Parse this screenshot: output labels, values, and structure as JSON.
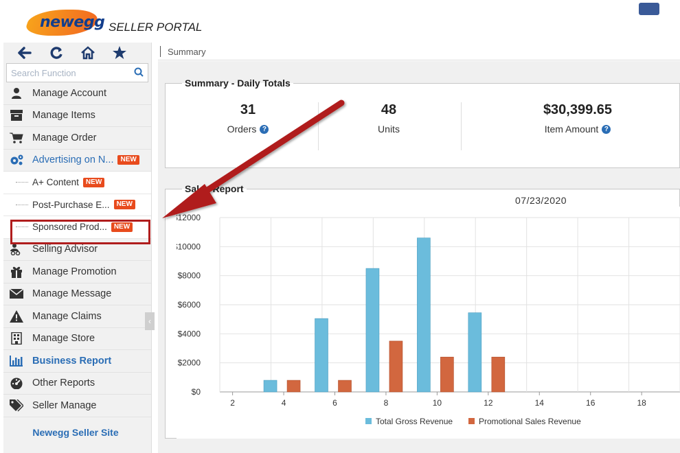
{
  "header": {
    "logo_text": "newegg",
    "portal_text": "SELLER PORTAL"
  },
  "search": {
    "placeholder": "Search Function"
  },
  "sidebar": {
    "items": [
      {
        "label": "Manage Account",
        "icon": "user-icon"
      },
      {
        "label": "Manage Items",
        "icon": "archive-icon"
      },
      {
        "label": "Manage Order",
        "icon": "cart-icon"
      },
      {
        "label": "Advertising on N...",
        "icon": "gears-icon",
        "badge": "NEW"
      }
    ],
    "sub_items": [
      {
        "label": "A+ Content",
        "badge": "NEW"
      },
      {
        "label": "Post-Purchase E...",
        "badge": "NEW"
      },
      {
        "label": "Sponsored Prod...",
        "badge": "NEW"
      }
    ],
    "items2": [
      {
        "label": "Selling Advisor",
        "icon": "advisor-icon"
      },
      {
        "label": "Manage Promotion",
        "icon": "gift-icon"
      },
      {
        "label": "Manage Message",
        "icon": "envelope-icon"
      },
      {
        "label": "Manage Claims",
        "icon": "warning-icon"
      },
      {
        "label": "Manage Store",
        "icon": "store-icon"
      },
      {
        "label": "Business Report",
        "icon": "bar-chart-icon"
      },
      {
        "label": "Other Reports",
        "icon": "dashboard-icon"
      },
      {
        "label": "Seller Manage",
        "icon": "tags-icon"
      }
    ],
    "seller_site": "Newegg Seller Site"
  },
  "breadcrumb": "Summary",
  "summary": {
    "legend": "Summary - Daily Totals",
    "stats": [
      {
        "value": "31",
        "label": "Orders"
      },
      {
        "value": "48",
        "label": "Units"
      },
      {
        "value": "$30,399.65",
        "label": "Item Amount"
      }
    ]
  },
  "sales": {
    "legend": "Sales Report",
    "date": "07/23/2020"
  },
  "colors": {
    "total_gross": "#6bbcdc",
    "promotional": "#d2673f",
    "highlight": "#b01d1d"
  },
  "chart_data": {
    "type": "bar",
    "categories": [
      "2",
      "3",
      "4",
      "5",
      "6",
      "7",
      "8",
      "9",
      "10",
      "11",
      "12",
      "13",
      "14",
      "15",
      "16",
      "17",
      "18",
      "19"
    ],
    "x_tick_labels": [
      "2",
      "4",
      "6",
      "8",
      "10",
      "12",
      "14",
      "16",
      "18"
    ],
    "series": [
      {
        "name": "Total Gross Revenue",
        "values": [
          0,
          0,
          800,
          0,
          5050,
          0,
          8500,
          0,
          10600,
          0,
          5450,
          0,
          0,
          0,
          0,
          0,
          0,
          0
        ]
      },
      {
        "name": "Promotional Sales Revenue",
        "values": [
          0,
          0,
          800,
          0,
          800,
          0,
          3500,
          0,
          2400,
          0,
          2400,
          0,
          0,
          0,
          0,
          0,
          0,
          0
        ]
      }
    ],
    "y_ticks": [
      "$0",
      "$2000",
      "$4000",
      "$6000",
      "$8000",
      "$10000",
      "$12000"
    ],
    "ylim": [
      0,
      12000
    ],
    "legend_position": "bottom",
    "grid": true
  }
}
